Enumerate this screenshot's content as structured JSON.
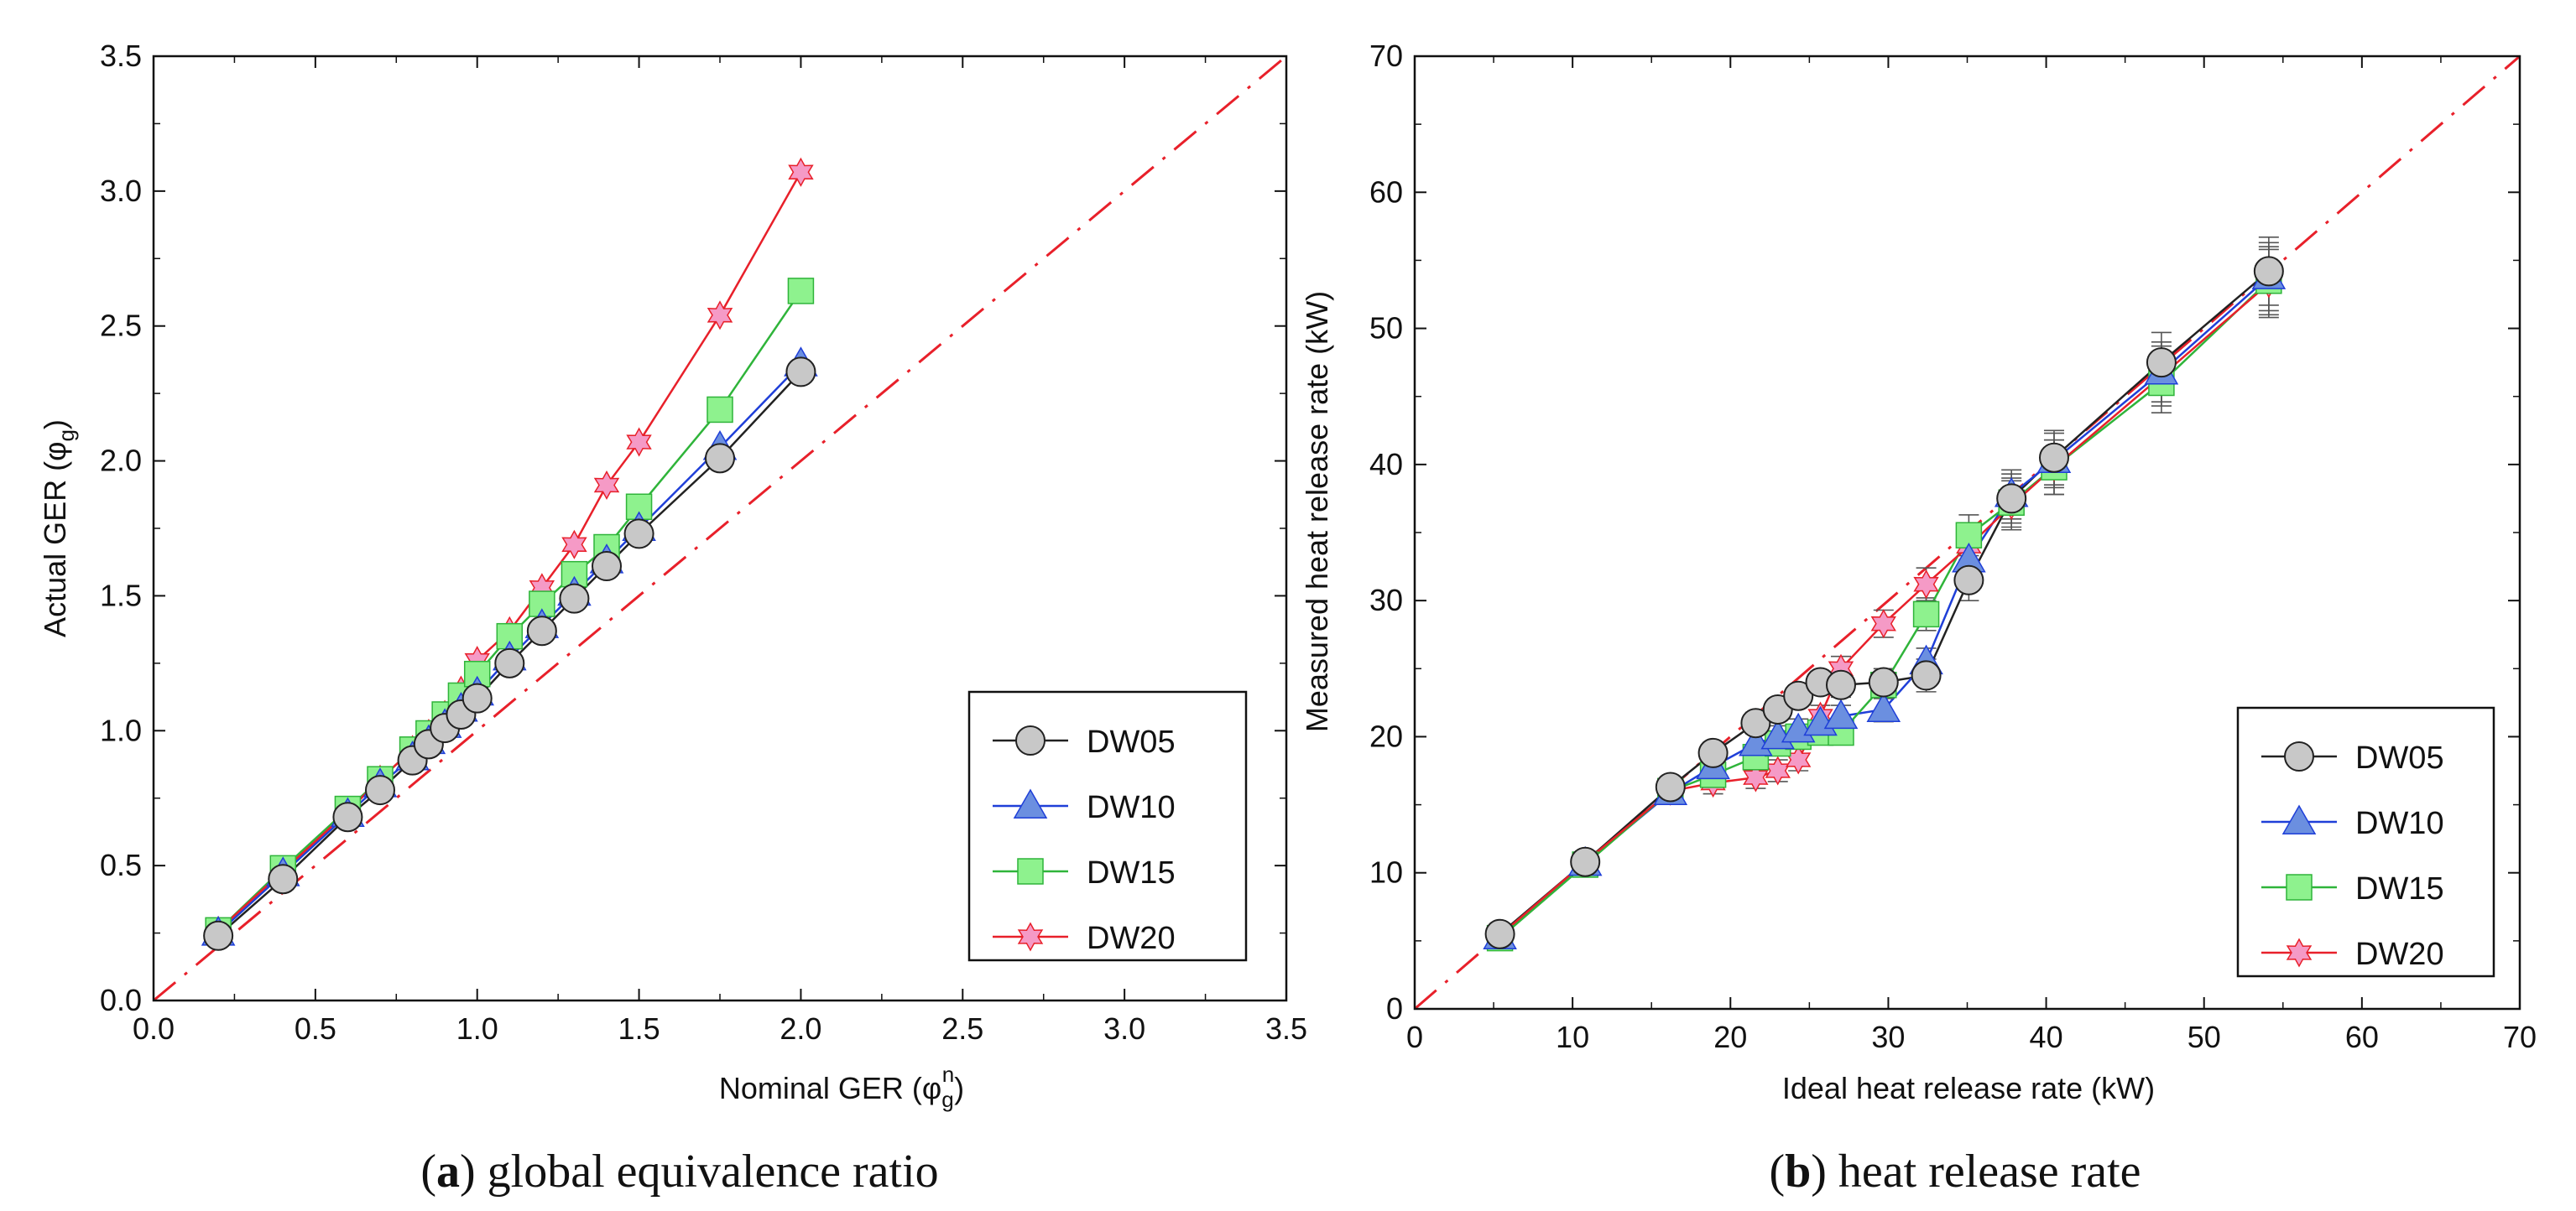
{
  "chart_data": [
    {
      "type": "line",
      "xlabel": {
        "prefix": "Nominal GER (",
        "symbol": "φ",
        "sub": "g",
        "sup": "n",
        "suffix": ")"
      },
      "ylabel": {
        "prefix": "Actual GER (",
        "symbol": "φ",
        "sub": "g",
        "suffix": ")"
      },
      "xlim": [
        0,
        3.5
      ],
      "ylim": [
        0,
        3.5
      ],
      "xticks": [
        "0.0",
        "0.5",
        "1.0",
        "1.5",
        "2.0",
        "2.5",
        "3.0",
        "3.5"
      ],
      "yticks": [
        "0.0",
        "0.5",
        "1.0",
        "1.5",
        "2.0",
        "2.5",
        "3.0",
        "3.5"
      ],
      "grid": false,
      "legend_position": "bottom-right",
      "reference_line": {
        "from": [
          0,
          0
        ],
        "to": [
          3.5,
          3.5
        ],
        "style": "dash-dot",
        "color": "#e8202a"
      },
      "series": [
        {
          "name": "DW05",
          "color": "#222222",
          "marker": "circle",
          "marker_fill": "#c8c8c8",
          "x": [
            0.2,
            0.4,
            0.6,
            0.7,
            0.8,
            0.85,
            0.9,
            0.95,
            1.0,
            1.1,
            1.2,
            1.3,
            1.4,
            1.5,
            1.75,
            2.0
          ],
          "y": [
            0.24,
            0.45,
            0.68,
            0.78,
            0.89,
            0.95,
            1.01,
            1.06,
            1.12,
            1.25,
            1.37,
            1.49,
            1.61,
            1.73,
            2.01,
            2.33
          ]
        },
        {
          "name": "DW10",
          "color": "#1f3fd8",
          "marker": "triangle",
          "marker_fill": "#6b8fe0",
          "x": [
            0.2,
            0.4,
            0.6,
            0.7,
            0.8,
            0.85,
            0.9,
            0.95,
            1.0,
            1.1,
            1.2,
            1.3,
            1.4,
            1.5,
            1.75,
            2.0
          ],
          "y": [
            0.25,
            0.47,
            0.69,
            0.8,
            0.9,
            0.96,
            1.02,
            1.08,
            1.14,
            1.27,
            1.39,
            1.51,
            1.63,
            1.75,
            2.05,
            2.36
          ]
        },
        {
          "name": "DW15",
          "color": "#2fb43a",
          "marker": "square",
          "marker_fill": "#8ef28e",
          "x": [
            0.2,
            0.4,
            0.6,
            0.7,
            0.8,
            0.85,
            0.9,
            0.95,
            1.0,
            1.1,
            1.2,
            1.3,
            1.4,
            1.5,
            1.75,
            2.0
          ],
          "y": [
            0.26,
            0.49,
            0.71,
            0.82,
            0.93,
            0.99,
            1.06,
            1.13,
            1.21,
            1.35,
            1.47,
            1.58,
            1.68,
            1.83,
            2.19,
            2.63
          ]
        },
        {
          "name": "DW20",
          "color": "#e8202a",
          "marker": "star",
          "marker_fill": "#f59ac6",
          "x": [
            0.2,
            0.4,
            0.6,
            0.7,
            0.8,
            0.85,
            0.9,
            0.95,
            1.0,
            1.1,
            1.2,
            1.3,
            1.4,
            1.5,
            1.75,
            2.0
          ],
          "y": [
            0.26,
            0.48,
            0.7,
            0.82,
            0.93,
            0.99,
            1.06,
            1.15,
            1.26,
            1.37,
            1.53,
            1.69,
            1.91,
            2.07,
            2.54,
            3.07
          ]
        }
      ]
    },
    {
      "type": "line",
      "xlabel": "Ideal heat release rate (kW)",
      "ylabel": "Measured heat release rate (kW)",
      "xlim": [
        0,
        70
      ],
      "ylim": [
        0,
        70
      ],
      "xticks": [
        "0",
        "10",
        "20",
        "30",
        "40",
        "50",
        "60",
        "70"
      ],
      "yticks": [
        "0",
        "10",
        "20",
        "30",
        "40",
        "50",
        "60",
        "70"
      ],
      "grid": false,
      "legend_position": "bottom-right",
      "reference_line": {
        "from": [
          0,
          0
        ],
        "to": [
          70,
          70
        ],
        "style": "dash-dot",
        "color": "#e8202a"
      },
      "error_bars": true,
      "series": [
        {
          "name": "DW05",
          "color": "#222222",
          "marker": "circle",
          "marker_fill": "#c8c8c8",
          "x": [
            5.4,
            10.8,
            16.2,
            18.9,
            21.6,
            23.0,
            24.3,
            25.7,
            27.0,
            29.7,
            32.4,
            35.1,
            37.8,
            40.5,
            47.3,
            54.1
          ],
          "y": [
            5.5,
            10.8,
            16.3,
            18.8,
            21.0,
            22.0,
            23.0,
            24.0,
            23.8,
            24.0,
            24.5,
            31.5,
            37.5,
            40.5,
            47.5,
            54.2
          ],
          "err": [
            0.8,
            0.8,
            0.8,
            0.8,
            0.8,
            0.8,
            0.8,
            0.8,
            0.9,
            1.0,
            1.2,
            1.5,
            1.8,
            2.0,
            2.2,
            2.5
          ]
        },
        {
          "name": "DW10",
          "color": "#1f3fd8",
          "marker": "triangle",
          "marker_fill": "#6b8fe0",
          "x": [
            5.4,
            10.8,
            16.2,
            18.9,
            21.6,
            23.0,
            24.3,
            25.7,
            27.0,
            29.7,
            32.4,
            35.1,
            37.8,
            40.5,
            47.3,
            54.1
          ],
          "y": [
            5.3,
            10.7,
            15.9,
            17.8,
            19.5,
            20.0,
            20.5,
            21.0,
            21.5,
            22.0,
            25.5,
            33.0,
            37.8,
            40.3,
            46.8,
            53.8
          ],
          "err": [
            0.8,
            0.8,
            0.8,
            0.8,
            0.8,
            0.8,
            0.8,
            0.8,
            0.8,
            0.9,
            1.0,
            1.5,
            1.8,
            2.0,
            2.2,
            2.5
          ]
        },
        {
          "name": "DW15",
          "color": "#2fb43a",
          "marker": "square",
          "marker_fill": "#8ef28e",
          "x": [
            5.4,
            10.8,
            16.2,
            18.9,
            21.6,
            23.0,
            24.3,
            25.7,
            27.0,
            29.7,
            32.4,
            35.1,
            37.8,
            40.5,
            47.3,
            54.1
          ],
          "y": [
            5.2,
            10.6,
            16.0,
            17.2,
            18.5,
            19.5,
            20.0,
            20.3,
            20.3,
            23.8,
            29.0,
            34.8,
            37.2,
            39.8,
            46.0,
            53.5
          ],
          "err": [
            0.8,
            0.8,
            0.8,
            0.8,
            0.8,
            0.8,
            0.8,
            0.8,
            0.8,
            1.0,
            1.2,
            1.5,
            1.8,
            2.0,
            2.2,
            2.5
          ]
        },
        {
          "name": "DW20",
          "color": "#e8202a",
          "marker": "star",
          "marker_fill": "#f59ac6",
          "x": [
            5.4,
            10.8,
            16.2,
            18.9,
            21.6,
            23.0,
            24.3,
            25.7,
            27.0,
            29.7,
            32.4,
            35.1,
            37.8,
            40.5,
            47.3,
            54.1
          ],
          "y": [
            5.4,
            10.8,
            16.0,
            16.6,
            17.0,
            17.5,
            18.3,
            21.5,
            25.0,
            28.3,
            31.2,
            34.0,
            37.0,
            39.8,
            46.5,
            53.3
          ],
          "err": [
            0.8,
            0.8,
            0.8,
            0.8,
            0.8,
            0.8,
            0.8,
            0.8,
            0.9,
            1.0,
            1.2,
            1.5,
            1.8,
            2.0,
            2.2,
            2.5
          ]
        }
      ]
    }
  ],
  "captions": [
    {
      "letter": "a",
      "text": " global equivalence ratio"
    },
    {
      "letter": "b",
      "text": " heat release rate"
    }
  ]
}
